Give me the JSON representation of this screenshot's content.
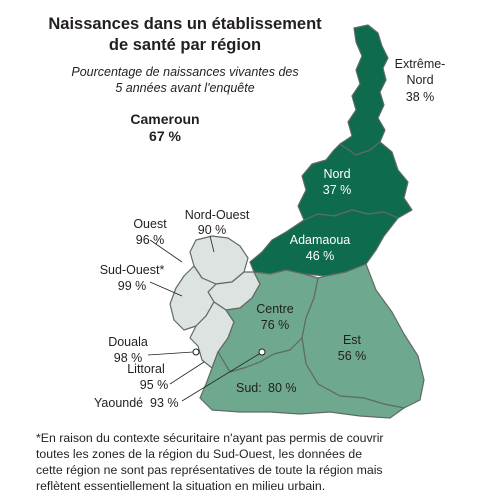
{
  "title_lines": [
    "Naissances dans un établissement",
    "de santé par région"
  ],
  "subtitle_lines": [
    "Pourcentage de naissances vivantes des",
    "5 années avant l'enquête"
  ],
  "national": {
    "name": "Cameroun",
    "value": "67 %"
  },
  "regions": [
    {
      "id": "extreme-nord",
      "label": "Extrême-Nord",
      "value": "38 %",
      "color": "#0e6b4d"
    },
    {
      "id": "nord",
      "label": "Nord",
      "value": "37 %",
      "color": "#0e6b4d"
    },
    {
      "id": "adamaoua",
      "label": "Adamaoua",
      "value": "46 %",
      "color": "#0e6b4d"
    },
    {
      "id": "nord-ouest",
      "label": "Nord-Ouest",
      "value": "90 %",
      "color": "#dde3e0"
    },
    {
      "id": "ouest",
      "label": "Ouest",
      "value": "96 %",
      "color": "#dde3e0"
    },
    {
      "id": "sud-ouest",
      "label": "Sud-Ouest*",
      "value": "99 %",
      "color": "#dde3e0"
    },
    {
      "id": "douala",
      "label": "Douala",
      "value": "98 %",
      "color": "#dde3e0"
    },
    {
      "id": "littoral",
      "label": "Littoral",
      "value": "95 %",
      "color": "#dde3e0"
    },
    {
      "id": "yaounde",
      "label": "Yaoundé",
      "value": "93 %",
      "color": "#dde3e0"
    },
    {
      "id": "centre",
      "label": "Centre",
      "value": "76 %",
      "color": "#6ea88f"
    },
    {
      "id": "est",
      "label": "Est",
      "value": "56 %",
      "color": "#6ea88f"
    },
    {
      "id": "sud",
      "label": "Sud:",
      "value": "80 %",
      "color": "#6ea88f"
    }
  ],
  "footnote_lines": [
    "*En raison du contexte sécuritaire n'ayant pas permis de couvrir",
    "toutes les zones de la région du Sud-Ouest, les données de",
    "cette région ne sont pas représentatives de toute la région mais",
    "reflètent essentiellement la situation en milieu urbain."
  ]
}
